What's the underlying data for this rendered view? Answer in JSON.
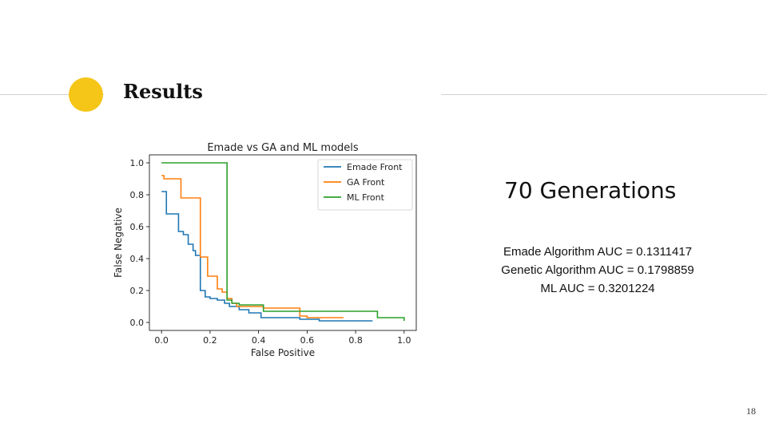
{
  "slide": {
    "title": "Results",
    "generations": "70 Generations",
    "auc_lines": [
      "Emade Algorithm AUC = 0.1311417",
      "Genetic Algorithm AUC = 0.1798859",
      "ML AUC = 0.3201224"
    ],
    "page_number": "18",
    "accent_color": "#f5c518"
  },
  "chart_data": {
    "type": "line",
    "title": "Emade vs GA and ML models",
    "xlabel": "False Positive",
    "ylabel": "False Negative",
    "xlim": [
      -0.05,
      1.05
    ],
    "ylim": [
      -0.05,
      1.05
    ],
    "xticks": [
      0.0,
      0.2,
      0.4,
      0.6,
      0.8,
      1.0
    ],
    "xtick_labels": [
      "0.0",
      "0.2",
      "0.4",
      "0.6",
      "0.8",
      "1.0"
    ],
    "yticks": [
      0.0,
      0.2,
      0.4,
      0.6,
      0.8,
      1.0
    ],
    "ytick_labels": [
      "0.0",
      "0.2",
      "0.4",
      "0.6",
      "0.8",
      "1.0"
    ],
    "grid": false,
    "legend_position": "top-right",
    "step": "post",
    "series": [
      {
        "name": "Emade Front",
        "color": "#1f77b4",
        "x": [
          0.0,
          0.02,
          0.07,
          0.09,
          0.11,
          0.13,
          0.14,
          0.16,
          0.18,
          0.2,
          0.23,
          0.26,
          0.28,
          0.32,
          0.36,
          0.41,
          0.57,
          0.65,
          0.87
        ],
        "y": [
          0.82,
          0.68,
          0.57,
          0.55,
          0.49,
          0.45,
          0.42,
          0.2,
          0.16,
          0.15,
          0.14,
          0.12,
          0.1,
          0.08,
          0.06,
          0.03,
          0.02,
          0.01,
          0.01
        ]
      },
      {
        "name": "GA Front",
        "color": "#ff7f0e",
        "x": [
          0.0,
          0.01,
          0.08,
          0.16,
          0.19,
          0.23,
          0.25,
          0.27,
          0.29,
          0.31,
          0.42,
          0.57,
          0.6,
          0.75
        ],
        "y": [
          0.92,
          0.9,
          0.78,
          0.41,
          0.29,
          0.21,
          0.19,
          0.15,
          0.12,
          0.1,
          0.09,
          0.04,
          0.03,
          0.03
        ]
      },
      {
        "name": "ML Front",
        "color": "#2ca02c",
        "x": [
          0.0,
          0.27,
          0.29,
          0.32,
          0.42,
          0.89,
          1.0
        ],
        "y": [
          1.0,
          0.14,
          0.12,
          0.11,
          0.07,
          0.03,
          0.01
        ]
      }
    ]
  }
}
